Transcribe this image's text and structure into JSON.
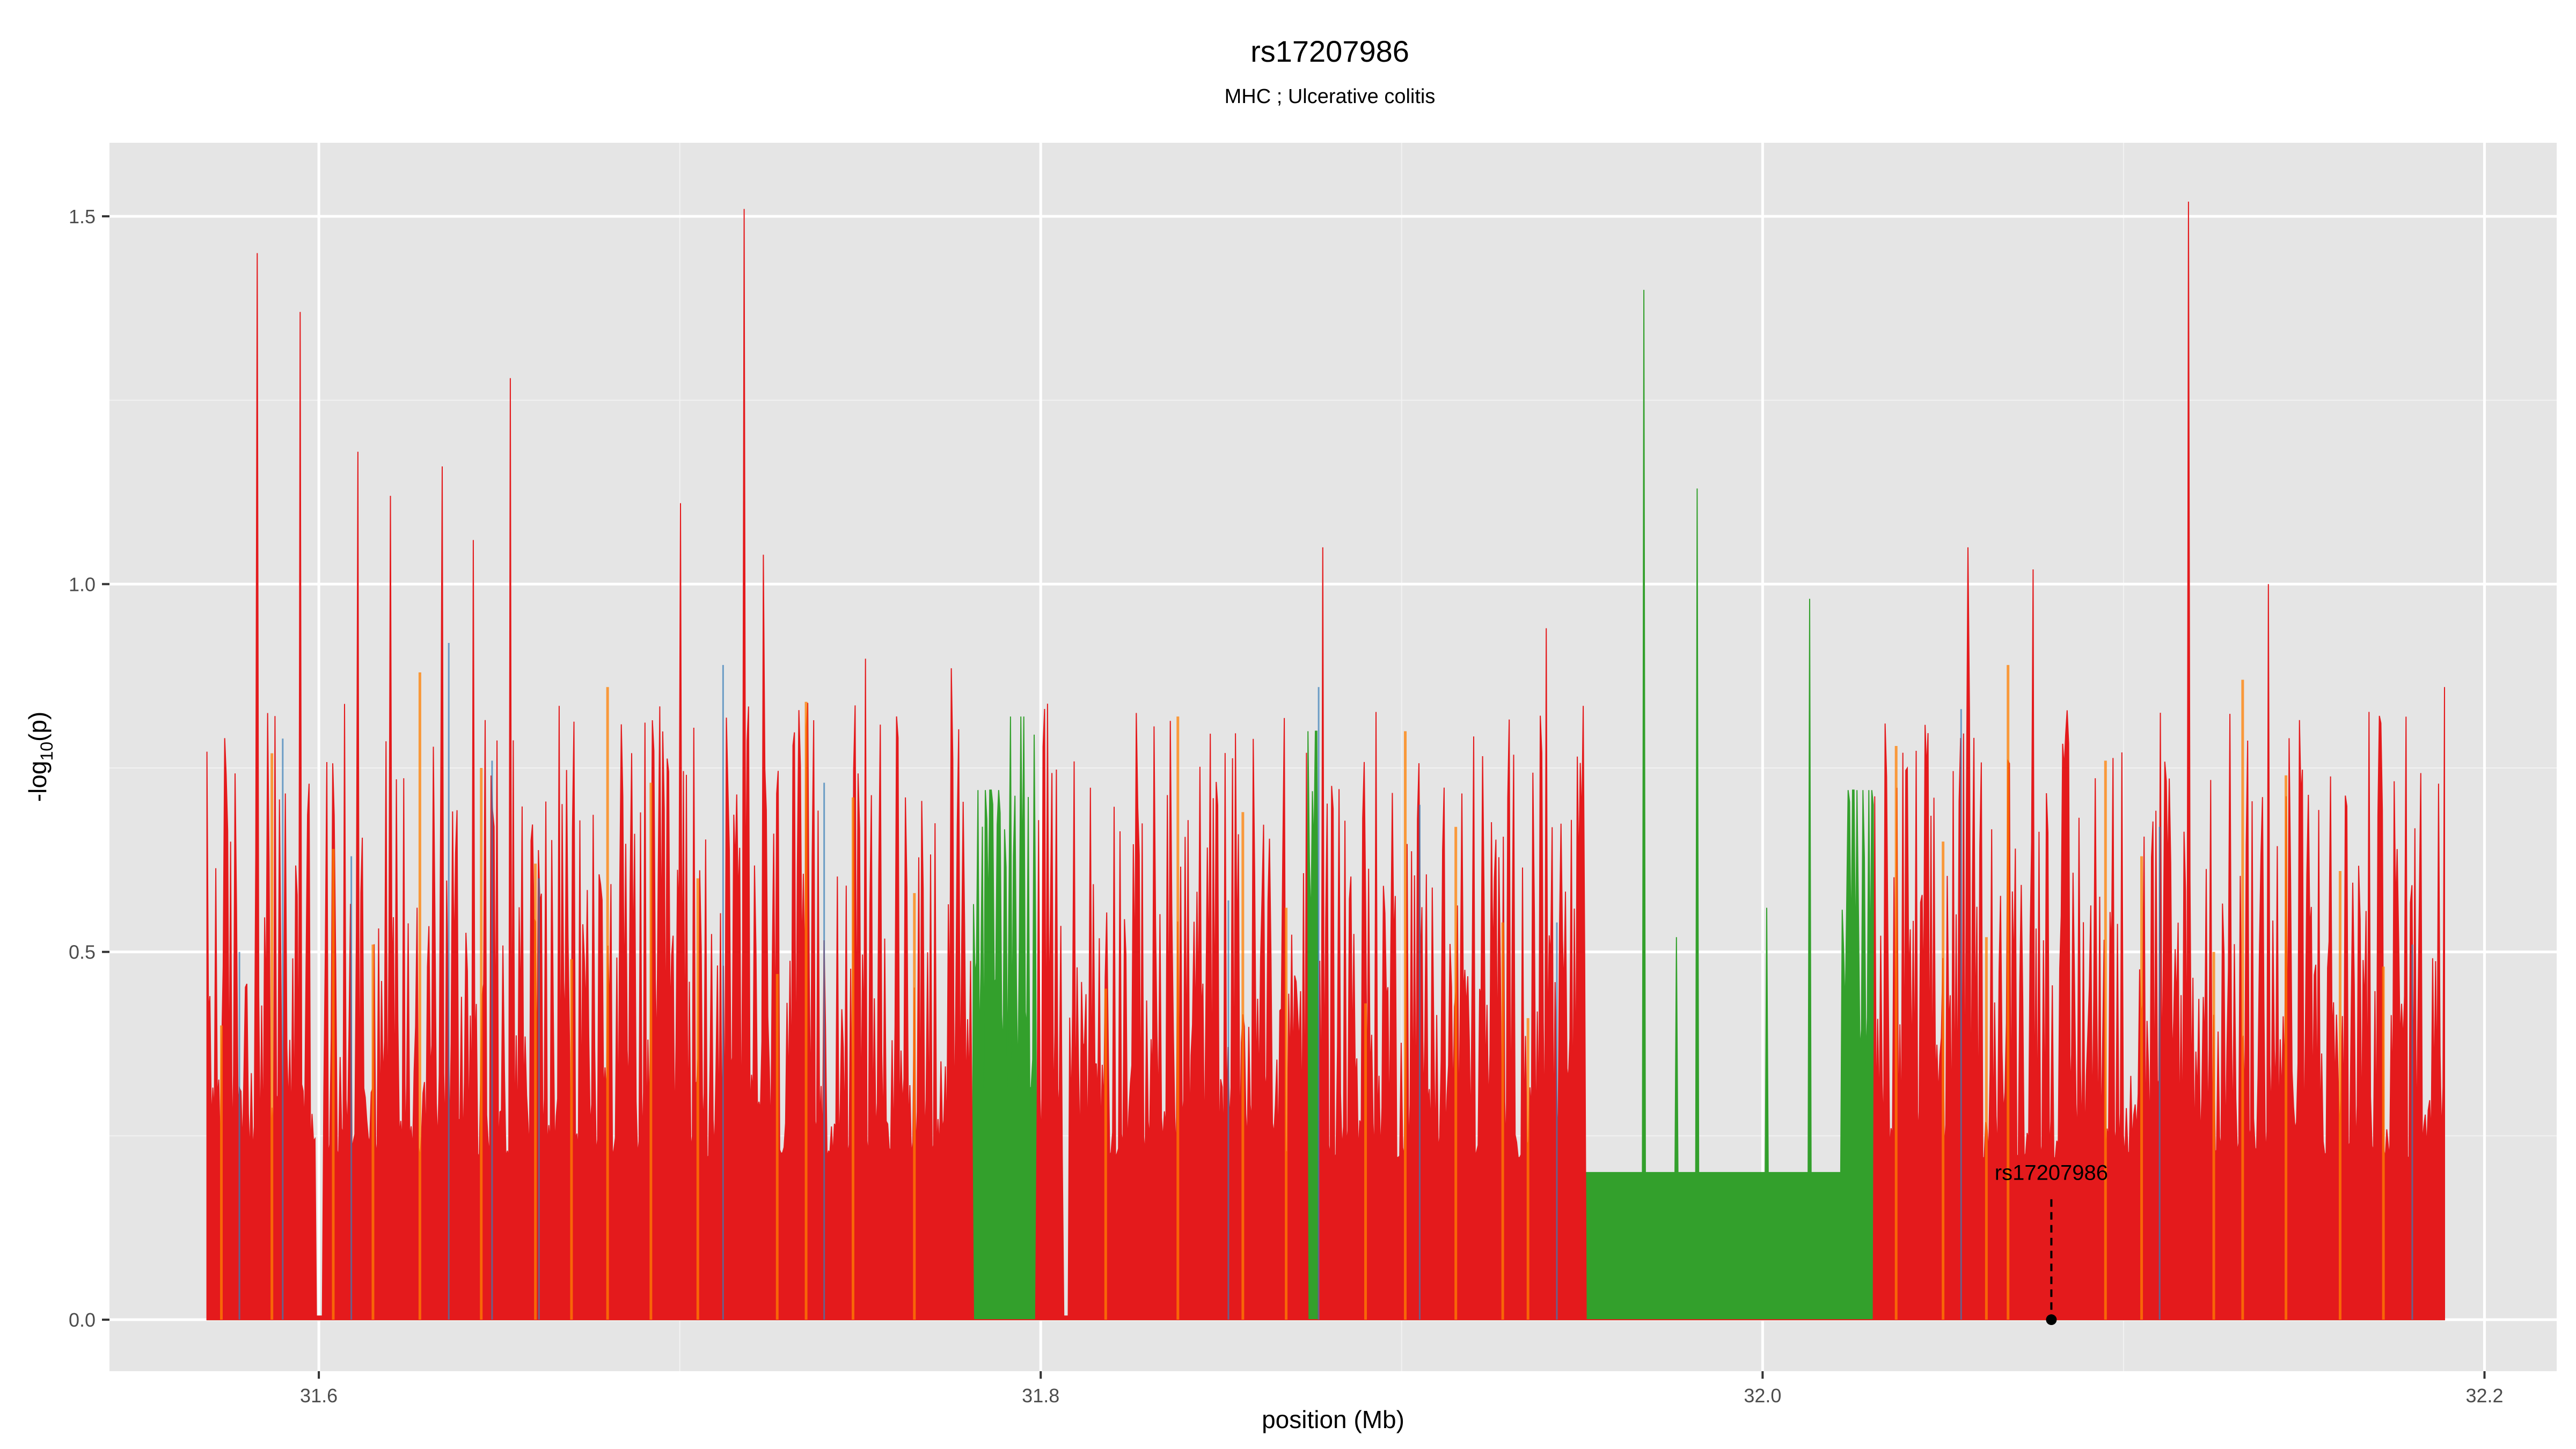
{
  "chart_data": {
    "type": "area",
    "title": "rs17207986",
    "subtitle": "MHC ; Ulcerative colitis",
    "xlabel": "position (Mb)",
    "ylabel_main": "-log",
    "ylabel_sub": "10",
    "ylabel_tail": "(p)",
    "xlim": [
      31.542,
      32.22
    ],
    "ylim": [
      -0.07,
      1.6
    ],
    "x_ticks": [
      {
        "value": 31.6,
        "label": "31.6"
      },
      {
        "value": 31.8,
        "label": "31.8"
      },
      {
        "value": 32.0,
        "label": "32.0"
      },
      {
        "value": 32.2,
        "label": "32.2"
      }
    ],
    "y_ticks": [
      {
        "value": 0.0,
        "label": "0.0"
      },
      {
        "value": 0.5,
        "label": "0.5"
      },
      {
        "value": 1.0,
        "label": "1.0"
      },
      {
        "value": 1.5,
        "label": "1.5"
      }
    ],
    "grid": true,
    "background_color": "#e5e5e5",
    "colors": {
      "red": "#e41a1c",
      "green": "#33a02c",
      "blue": "#377eb8",
      "orange": "#ff7f00"
    },
    "x_start": 31.569,
    "x_end": 32.189,
    "step": 0.00041,
    "red_baseline": 0.22,
    "green_segments": [
      {
        "start": 31.781,
        "end": 31.791,
        "peak": 0.72
      },
      {
        "start": 31.79,
        "end": 31.799,
        "peak": 0.82
      },
      {
        "start": 31.874,
        "end": 31.877,
        "peak": 0.8
      },
      {
        "start": 31.951,
        "end": 32.022,
        "peak": 0.2
      },
      {
        "start": 32.022,
        "end": 32.031,
        "peak": 0.72
      }
    ],
    "green_peaks": [
      {
        "x": 31.967,
        "value": 1.4
      },
      {
        "x": 31.982,
        "value": 1.13
      },
      {
        "x": 31.976,
        "value": 0.52
      },
      {
        "x": 32.013,
        "value": 0.98
      },
      {
        "x": 32.001,
        "value": 0.56
      }
    ],
    "red_peaks": [
      {
        "x": 31.583,
        "value": 1.45
      },
      {
        "x": 31.595,
        "value": 1.37
      },
      {
        "x": 31.611,
        "value": 1.18
      },
      {
        "x": 31.62,
        "value": 1.12
      },
      {
        "x": 31.634,
        "value": 1.16
      },
      {
        "x": 31.643,
        "value": 1.06
      },
      {
        "x": 31.653,
        "value": 1.28
      },
      {
        "x": 31.7,
        "value": 1.11
      },
      {
        "x": 31.718,
        "value": 1.51
      },
      {
        "x": 31.723,
        "value": 1.04
      },
      {
        "x": 31.878,
        "value": 1.05
      },
      {
        "x": 31.94,
        "value": 0.94
      },
      {
        "x": 32.057,
        "value": 1.05
      },
      {
        "x": 32.075,
        "value": 1.02
      },
      {
        "x": 32.118,
        "value": 1.52
      },
      {
        "x": 32.14,
        "value": 1.0
      },
      {
        "x": 32.189,
        "value": 0.86
      }
    ],
    "gaps": [
      {
        "start": 31.599,
        "end": 31.601
      },
      {
        "start": 31.806,
        "end": 31.808
      }
    ],
    "blue_lines": [
      31.578,
      31.59,
      31.609,
      31.636,
      31.648,
      31.661,
      31.712,
      31.74,
      31.852,
      31.877,
      31.905,
      31.943,
      32.055,
      32.11,
      32.18
    ],
    "orange_lines": [
      31.573,
      31.587,
      31.604,
      31.615,
      31.628,
      31.645,
      31.66,
      31.67,
      31.68,
      31.692,
      31.705,
      31.727,
      31.735,
      31.748,
      31.765,
      31.818,
      31.838,
      31.856,
      31.868,
      31.89,
      31.901,
      31.915,
      31.928,
      31.935,
      32.037,
      32.05,
      32.062,
      32.068,
      32.095,
      32.105,
      32.125,
      32.133,
      32.145,
      32.16,
      32.172
    ],
    "annotation": {
      "label": "rs17207986",
      "x": 32.08,
      "y": 0.0,
      "label_y": 0.19
    }
  }
}
